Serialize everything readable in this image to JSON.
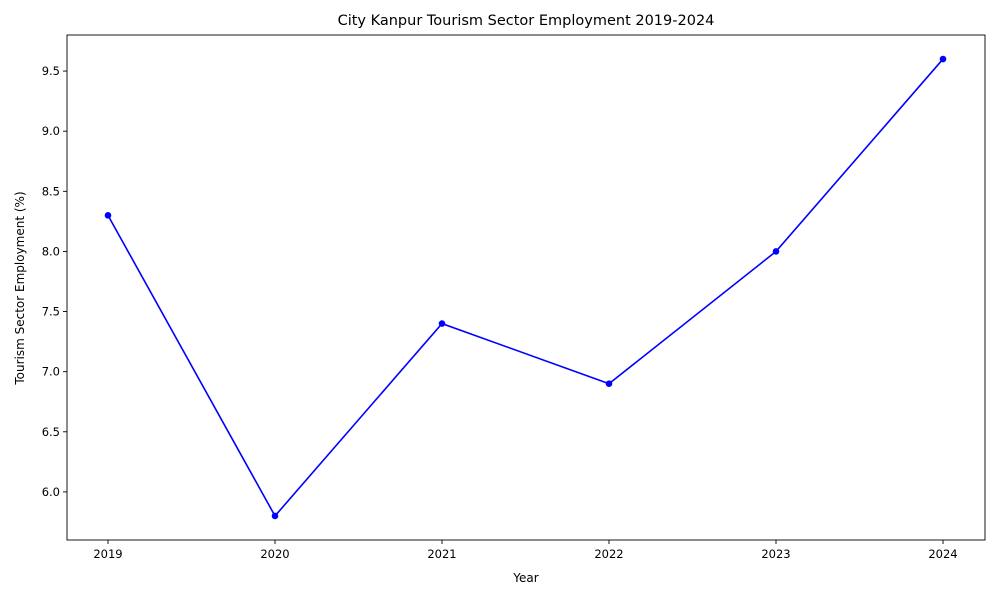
{
  "chart_data": {
    "type": "line",
    "title": "City Kanpur Tourism Sector Employment 2019-2024",
    "xlabel": "Year",
    "ylabel": "Tourism Sector Employment (%)",
    "x": [
      "2019",
      "2020",
      "2021",
      "2022",
      "2023",
      "2024"
    ],
    "series": [
      {
        "values": [
          8.3,
          5.8,
          7.4,
          6.9,
          8.0,
          9.6
        ]
      }
    ],
    "ylim": [
      5.6,
      9.8
    ],
    "yticks": [
      "6.0",
      "6.5",
      "7.0",
      "7.5",
      "8.0",
      "8.5",
      "9.0",
      "9.5"
    ],
    "line_color": "#0000ff",
    "marker": "circle",
    "grid": false,
    "legend": "none"
  }
}
